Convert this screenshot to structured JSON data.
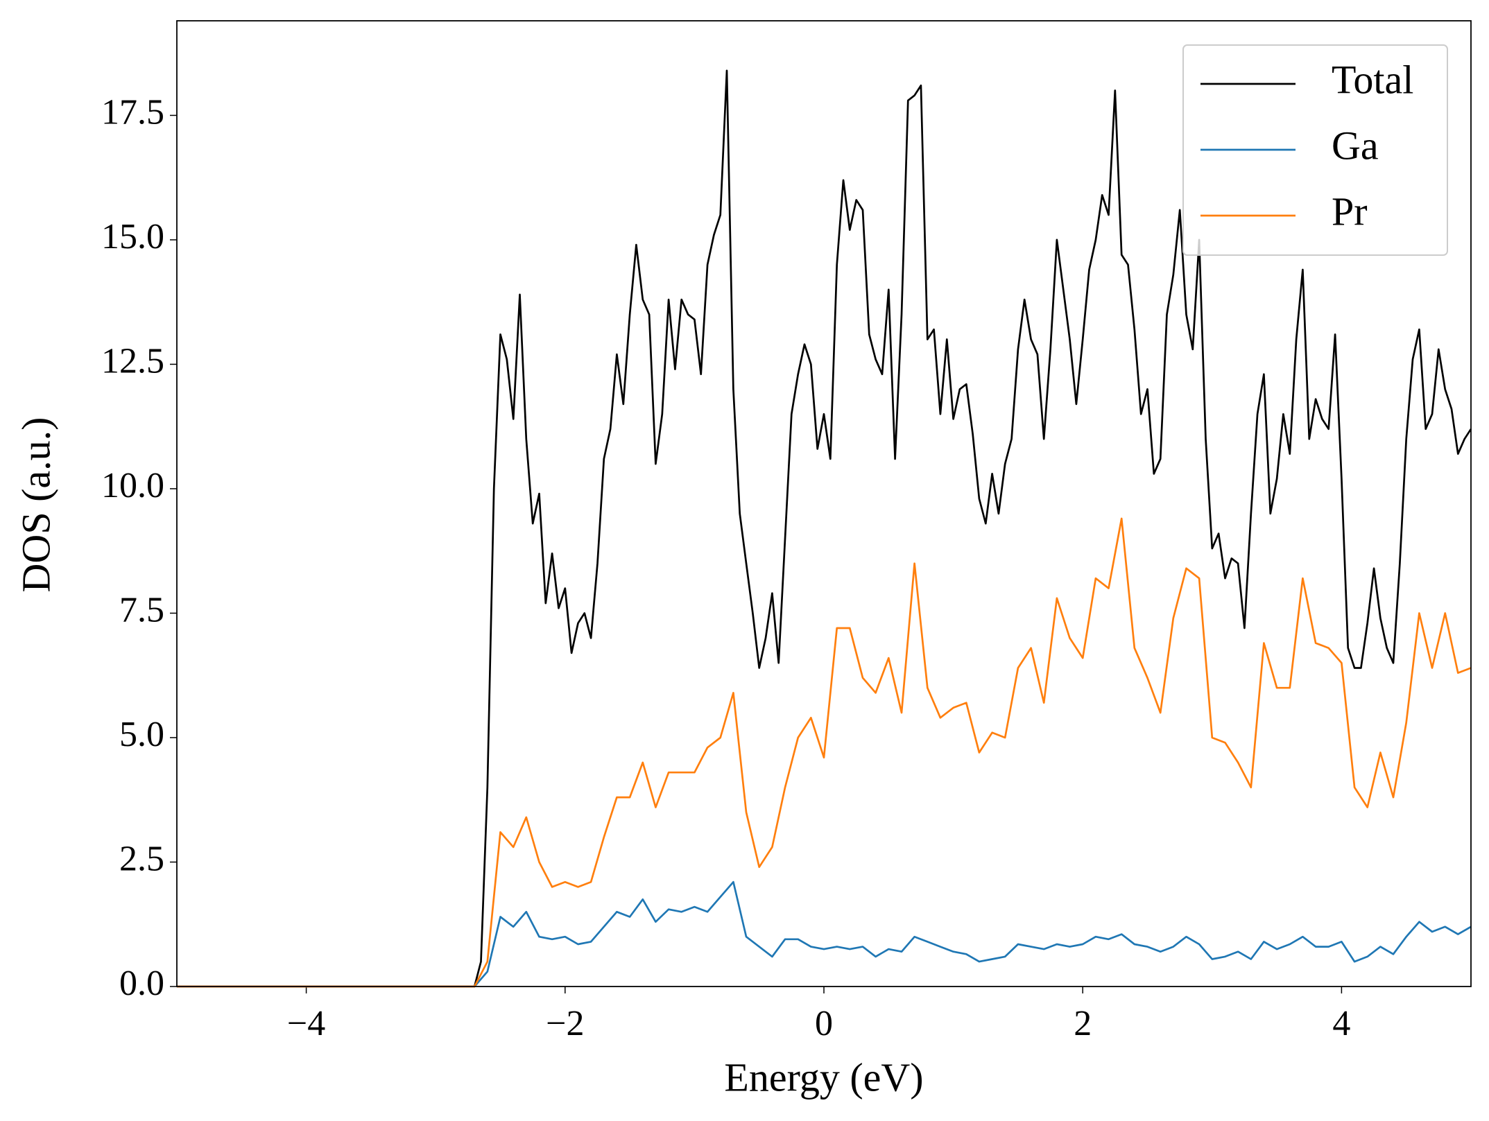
{
  "chart_data": {
    "type": "line",
    "xlabel": "Energy (eV)",
    "ylabel": "DOS (a.u.)",
    "xlim": [
      -5,
      5
    ],
    "ylim": [
      0,
      19.4
    ],
    "xticks": [
      {
        "value": -4,
        "label": "−4"
      },
      {
        "value": -2,
        "label": "−2"
      },
      0,
      2,
      4
    ],
    "yticks": [
      {
        "value": 0,
        "label": "0.0"
      },
      2.5,
      {
        "value": 5,
        "label": "5.0"
      },
      7.5,
      {
        "value": 10,
        "label": "10.0"
      },
      12.5,
      {
        "value": 15,
        "label": "15.0"
      },
      17.5
    ],
    "legend": "upper right",
    "series": [
      {
        "name": "Total",
        "color": "#000000",
        "x": [
          -5,
          -2.7,
          -2.65,
          -2.6,
          -2.55,
          -2.5,
          -2.45,
          -2.4,
          -2.35,
          -2.3,
          -2.25,
          -2.2,
          -2.15,
          -2.1,
          -2.05,
          -2.0,
          -1.95,
          -1.9,
          -1.85,
          -1.8,
          -1.75,
          -1.7,
          -1.65,
          -1.6,
          -1.55,
          -1.5,
          -1.45,
          -1.4,
          -1.35,
          -1.3,
          -1.25,
          -1.2,
          -1.15,
          -1.1,
          -1.05,
          -1.0,
          -0.95,
          -0.9,
          -0.85,
          -0.8,
          -0.75,
          -0.7,
          -0.65,
          -0.6,
          -0.55,
          -0.5,
          -0.45,
          -0.4,
          -0.35,
          -0.3,
          -0.25,
          -0.2,
          -0.15,
          -0.1,
          -0.05,
          0,
          0.05,
          0.1,
          0.15,
          0.2,
          0.25,
          0.3,
          0.35,
          0.4,
          0.45,
          0.5,
          0.55,
          0.6,
          0.65,
          0.7,
          0.75,
          0.8,
          0.85,
          0.9,
          0.95,
          1.0,
          1.05,
          1.1,
          1.15,
          1.2,
          1.25,
          1.3,
          1.35,
          1.4,
          1.45,
          1.5,
          1.55,
          1.6,
          1.65,
          1.7,
          1.75,
          1.8,
          1.85,
          1.9,
          1.95,
          2.0,
          2.05,
          2.1,
          2.15,
          2.2,
          2.25,
          2.3,
          2.35,
          2.4,
          2.45,
          2.5,
          2.55,
          2.6,
          2.65,
          2.7,
          2.75,
          2.8,
          2.85,
          2.9,
          2.95,
          3.0,
          3.05,
          3.1,
          3.15,
          3.2,
          3.25,
          3.3,
          3.35,
          3.4,
          3.45,
          3.5,
          3.55,
          3.6,
          3.65,
          3.7,
          3.75,
          3.8,
          3.85,
          3.9,
          3.95,
          4.0,
          4.05,
          4.1,
          4.15,
          4.2,
          4.25,
          4.3,
          4.35,
          4.4,
          4.45,
          4.5,
          4.55,
          4.6,
          4.65,
          4.7,
          4.75,
          4.8,
          4.85,
          4.9,
          4.95,
          5.0
        ],
        "values": [
          0,
          0,
          0.5,
          4.0,
          10.0,
          13.1,
          12.6,
          11.4,
          13.9,
          11.0,
          9.3,
          9.9,
          7.7,
          8.7,
          7.6,
          8.0,
          6.7,
          7.3,
          7.5,
          7.0,
          8.5,
          10.6,
          11.2,
          12.7,
          11.7,
          13.5,
          14.9,
          13.8,
          13.5,
          10.5,
          11.5,
          13.8,
          12.4,
          13.8,
          13.5,
          13.4,
          12.3,
          14.5,
          15.1,
          15.5,
          18.4,
          12.0,
          9.5,
          8.5,
          7.5,
          6.4,
          7.0,
          7.9,
          6.5,
          9.0,
          11.5,
          12.3,
          12.9,
          12.5,
          10.8,
          11.5,
          10.6,
          14.5,
          16.2,
          15.2,
          15.8,
          15.6,
          13.1,
          12.6,
          12.3,
          14.0,
          10.6,
          13.5,
          17.8,
          17.9,
          18.1,
          13.0,
          13.2,
          11.5,
          13.0,
          11.4,
          12.0,
          12.1,
          11.1,
          9.8,
          9.3,
          10.3,
          9.5,
          10.5,
          11.0,
          12.8,
          13.8,
          13.0,
          12.7,
          11.0,
          12.8,
          15.0,
          14.0,
          13.0,
          11.7,
          13.0,
          14.4,
          15.0,
          15.9,
          15.5,
          18.0,
          14.7,
          14.5,
          13.2,
          11.5,
          12.0,
          10.3,
          10.6,
          13.5,
          14.3,
          15.6,
          13.5,
          12.8,
          15.0,
          11.0,
          8.8,
          9.1,
          8.2,
          8.6,
          8.5,
          7.2,
          9.5,
          11.5,
          12.3,
          9.5,
          10.2,
          11.5,
          10.7,
          13.0,
          14.4,
          11.0,
          11.8,
          11.4,
          11.2,
          13.1,
          10.2,
          6.8,
          6.4,
          6.4,
          7.3,
          8.4,
          7.4,
          6.8,
          6.5,
          8.5,
          11.0,
          12.6,
          13.2,
          11.2,
          11.5,
          12.8,
          12.0,
          11.6,
          10.7,
          11.0,
          11.2
        ]
      },
      {
        "name": "Ga",
        "color": "#1f77b4",
        "x": [
          -5,
          -2.7,
          -2.6,
          -2.5,
          -2.4,
          -2.3,
          -2.2,
          -2.1,
          -2.0,
          -1.9,
          -1.8,
          -1.7,
          -1.6,
          -1.5,
          -1.4,
          -1.3,
          -1.2,
          -1.1,
          -1.0,
          -0.9,
          -0.8,
          -0.7,
          -0.6,
          -0.5,
          -0.4,
          -0.3,
          -0.2,
          -0.1,
          0,
          0.1,
          0.2,
          0.3,
          0.4,
          0.5,
          0.6,
          0.7,
          0.8,
          0.9,
          1.0,
          1.1,
          1.2,
          1.3,
          1.4,
          1.5,
          1.6,
          1.7,
          1.8,
          1.9,
          2.0,
          2.1,
          2.2,
          2.3,
          2.4,
          2.5,
          2.6,
          2.7,
          2.8,
          2.9,
          3.0,
          3.1,
          3.2,
          3.3,
          3.4,
          3.5,
          3.6,
          3.7,
          3.8,
          3.9,
          4.0,
          4.1,
          4.2,
          4.3,
          4.4,
          4.5,
          4.6,
          4.7,
          4.8,
          4.9,
          5.0
        ],
        "values": [
          0,
          0,
          0.3,
          1.4,
          1.2,
          1.5,
          1.0,
          0.95,
          1.0,
          0.85,
          0.9,
          1.2,
          1.5,
          1.4,
          1.75,
          1.3,
          1.55,
          1.5,
          1.6,
          1.5,
          1.8,
          2.1,
          1.0,
          0.8,
          0.6,
          0.95,
          0.95,
          0.8,
          0.75,
          0.8,
          0.75,
          0.8,
          0.6,
          0.75,
          0.7,
          1.0,
          0.9,
          0.8,
          0.7,
          0.65,
          0.5,
          0.55,
          0.6,
          0.85,
          0.8,
          0.75,
          0.85,
          0.8,
          0.85,
          1.0,
          0.95,
          1.05,
          0.85,
          0.8,
          0.7,
          0.8,
          1.0,
          0.85,
          0.55,
          0.6,
          0.7,
          0.55,
          0.9,
          0.75,
          0.85,
          1.0,
          0.8,
          0.8,
          0.9,
          0.5,
          0.6,
          0.8,
          0.65,
          1.0,
          1.3,
          1.1,
          1.2,
          1.05,
          1.2
        ]
      },
      {
        "name": "Pr",
        "color": "#ff7f0e",
        "x": [
          -5,
          -2.7,
          -2.6,
          -2.5,
          -2.4,
          -2.3,
          -2.2,
          -2.1,
          -2.0,
          -1.9,
          -1.8,
          -1.7,
          -1.6,
          -1.5,
          -1.4,
          -1.3,
          -1.2,
          -1.1,
          -1.0,
          -0.9,
          -0.8,
          -0.7,
          -0.6,
          -0.5,
          -0.4,
          -0.3,
          -0.2,
          -0.1,
          0,
          0.1,
          0.2,
          0.3,
          0.4,
          0.5,
          0.6,
          0.7,
          0.8,
          0.9,
          1.0,
          1.1,
          1.2,
          1.3,
          1.4,
          1.5,
          1.6,
          1.7,
          1.8,
          1.9,
          2.0,
          2.1,
          2.2,
          2.3,
          2.4,
          2.5,
          2.6,
          2.7,
          2.8,
          2.9,
          3.0,
          3.1,
          3.2,
          3.3,
          3.4,
          3.5,
          3.6,
          3.7,
          3.8,
          3.9,
          4.0,
          4.1,
          4.2,
          4.3,
          4.4,
          4.5,
          4.6,
          4.7,
          4.8,
          4.9,
          5.0
        ],
        "values": [
          0,
          0,
          0.5,
          3.1,
          2.8,
          3.4,
          2.5,
          2.0,
          2.1,
          2.0,
          2.1,
          3.0,
          3.8,
          3.8,
          4.5,
          3.6,
          4.3,
          4.3,
          4.3,
          4.8,
          5.0,
          5.9,
          3.5,
          2.4,
          2.8,
          4.0,
          5.0,
          5.4,
          4.6,
          7.2,
          7.2,
          6.2,
          5.9,
          6.6,
          5.5,
          8.5,
          6.0,
          5.4,
          5.6,
          5.7,
          4.7,
          5.1,
          5.0,
          6.4,
          6.8,
          5.7,
          7.8,
          7.0,
          6.6,
          8.2,
          8.0,
          9.4,
          6.8,
          6.2,
          5.5,
          7.4,
          8.4,
          8.2,
          5.0,
          4.9,
          4.5,
          4.0,
          6.9,
          6.0,
          6.0,
          8.2,
          6.9,
          6.8,
          6.5,
          4.0,
          3.6,
          4.7,
          3.8,
          5.3,
          7.5,
          6.4,
          7.5,
          6.3,
          6.4
        ]
      }
    ]
  }
}
